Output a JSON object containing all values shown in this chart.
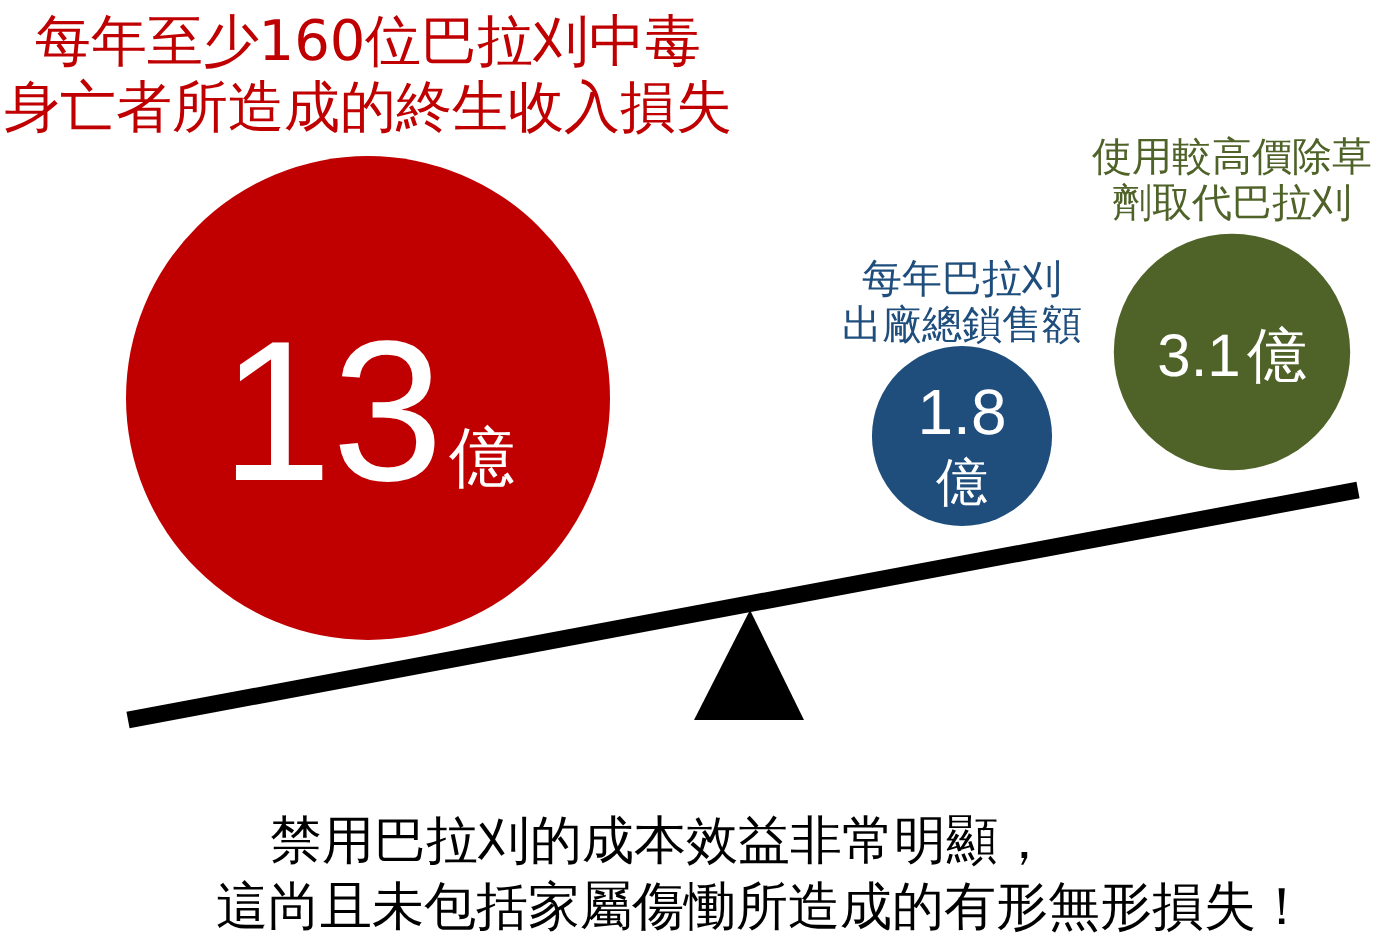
{
  "chart_data": {
    "type": "other",
    "categories": [
      "每年至少160位巴拉刈中毒身亡者所造成的終生收入損失",
      "每年巴拉刈出廠總鎖售額",
      "使用較高價除草劑取代巴拉刈"
    ],
    "values": [
      13,
      1.8,
      3.1
    ],
    "colors": [
      "#c00000",
      "#1f4e7d",
      "#4f6228"
    ],
    "value_labels": [
      "13億",
      "1.8億",
      "3.1億"
    ],
    "annotations": [
      "禁用巴拉刈的成本效益非常明顯，這尚且未包括家屬傷慟所造成的有形無形損失！"
    ]
  }
}
